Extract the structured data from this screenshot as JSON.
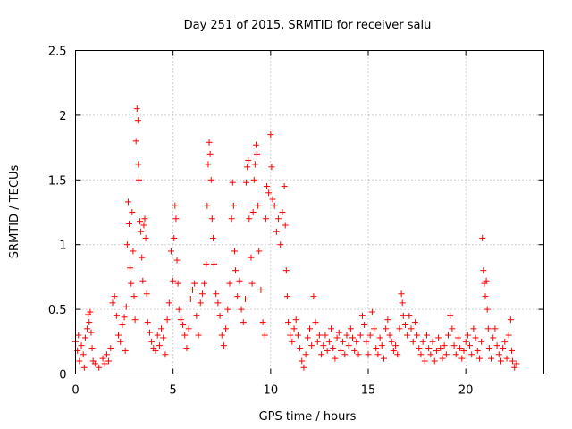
{
  "chart_data": {
    "type": "scatter",
    "title": "Day 251 of 2015, SRMTID for receiver salu",
    "xlabel": "GPS time / hours",
    "ylabel": "SRMTID / TECUs",
    "xlim": [
      0,
      24
    ],
    "ylim": [
      0,
      2.5
    ],
    "grid": true,
    "marker": "+",
    "marker_color": "#ff0000",
    "x_ticks": [
      0,
      5,
      10,
      15,
      20
    ],
    "x_tick_labels": [
      "0",
      "5",
      "10",
      "15",
      "20"
    ],
    "y_ticks": [
      0,
      0.5,
      1,
      1.5,
      2,
      2.5
    ],
    "y_tick_labels": [
      "0",
      "0.5",
      "1",
      "1.5",
      "2",
      "2.5"
    ],
    "series": [
      {
        "name": "salu",
        "points": [
          [
            0.0,
            0.25
          ],
          [
            0.1,
            0.18
          ],
          [
            0.15,
            0.3
          ],
          [
            0.2,
            0.1
          ],
          [
            0.3,
            0.22
          ],
          [
            0.4,
            0.15
          ],
          [
            0.45,
            0.05
          ],
          [
            0.5,
            0.28
          ],
          [
            0.6,
            0.35
          ],
          [
            0.65,
            0.46
          ],
          [
            0.7,
            0.4
          ],
          [
            0.75,
            0.48
          ],
          [
            0.8,
            0.32
          ],
          [
            0.85,
            0.2
          ],
          [
            0.9,
            0.1
          ],
          [
            1.0,
            0.08
          ],
          [
            1.2,
            0.05
          ],
          [
            1.4,
            0.12
          ],
          [
            1.5,
            0.08
          ],
          [
            1.6,
            0.15
          ],
          [
            1.7,
            0.1
          ],
          [
            1.8,
            0.2
          ],
          [
            1.9,
            0.55
          ],
          [
            2.0,
            0.6
          ],
          [
            2.1,
            0.45
          ],
          [
            2.2,
            0.3
          ],
          [
            2.3,
            0.25
          ],
          [
            2.4,
            0.38
          ],
          [
            2.5,
            0.44
          ],
          [
            2.55,
            0.18
          ],
          [
            2.6,
            0.52
          ],
          [
            2.65,
            1.0
          ],
          [
            2.7,
            1.33
          ],
          [
            2.75,
            1.16
          ],
          [
            2.8,
            0.82
          ],
          [
            2.85,
            0.7
          ],
          [
            2.9,
            1.25
          ],
          [
            2.95,
            0.95
          ],
          [
            3.0,
            0.6
          ],
          [
            3.05,
            0.42
          ],
          [
            3.1,
            1.8
          ],
          [
            3.15,
            2.05
          ],
          [
            3.2,
            1.96
          ],
          [
            3.22,
            1.62
          ],
          [
            3.25,
            1.5
          ],
          [
            3.3,
            1.18
          ],
          [
            3.35,
            1.1
          ],
          [
            3.4,
            0.9
          ],
          [
            3.45,
            0.72
          ],
          [
            3.5,
            1.15
          ],
          [
            3.55,
            1.2
          ],
          [
            3.6,
            1.05
          ],
          [
            3.65,
            0.62
          ],
          [
            3.7,
            0.4
          ],
          [
            3.8,
            0.32
          ],
          [
            3.9,
            0.25
          ],
          [
            4.0,
            0.2
          ],
          [
            4.1,
            0.18
          ],
          [
            4.2,
            0.3
          ],
          [
            4.3,
            0.22
          ],
          [
            4.4,
            0.35
          ],
          [
            4.5,
            0.28
          ],
          [
            4.6,
            0.15
          ],
          [
            4.7,
            0.42
          ],
          [
            4.8,
            0.55
          ],
          [
            4.9,
            0.95
          ],
          [
            5.0,
            0.72
          ],
          [
            5.05,
            1.05
          ],
          [
            5.1,
            1.3
          ],
          [
            5.15,
            1.2
          ],
          [
            5.2,
            0.88
          ],
          [
            5.25,
            0.7
          ],
          [
            5.3,
            0.5
          ],
          [
            5.4,
            0.42
          ],
          [
            5.5,
            0.38
          ],
          [
            5.6,
            0.3
          ],
          [
            5.7,
            0.2
          ],
          [
            5.8,
            0.35
          ],
          [
            5.9,
            0.58
          ],
          [
            6.0,
            0.65
          ],
          [
            6.1,
            0.7
          ],
          [
            6.2,
            0.45
          ],
          [
            6.3,
            0.3
          ],
          [
            6.4,
            0.55
          ],
          [
            6.5,
            0.62
          ],
          [
            6.6,
            0.7
          ],
          [
            6.7,
            0.85
          ],
          [
            6.75,
            1.3
          ],
          [
            6.8,
            1.62
          ],
          [
            6.85,
            1.79
          ],
          [
            6.9,
            1.7
          ],
          [
            6.95,
            1.5
          ],
          [
            7.0,
            1.2
          ],
          [
            7.05,
            1.05
          ],
          [
            7.1,
            0.85
          ],
          [
            7.2,
            0.62
          ],
          [
            7.3,
            0.55
          ],
          [
            7.4,
            0.45
          ],
          [
            7.5,
            0.3
          ],
          [
            7.6,
            0.22
          ],
          [
            7.7,
            0.35
          ],
          [
            7.8,
            0.5
          ],
          [
            7.9,
            0.7
          ],
          [
            8.0,
            1.2
          ],
          [
            8.05,
            1.48
          ],
          [
            8.1,
            1.3
          ],
          [
            8.15,
            0.95
          ],
          [
            8.2,
            0.8
          ],
          [
            8.3,
            0.6
          ],
          [
            8.4,
            0.72
          ],
          [
            8.5,
            0.5
          ],
          [
            8.6,
            0.4
          ],
          [
            8.7,
            0.58
          ],
          [
            8.75,
            1.48
          ],
          [
            8.8,
            1.6
          ],
          [
            8.85,
            1.65
          ],
          [
            8.9,
            1.2
          ],
          [
            9.0,
            0.9
          ],
          [
            9.05,
            0.7
          ],
          [
            9.1,
            1.25
          ],
          [
            9.15,
            1.5
          ],
          [
            9.2,
            1.62
          ],
          [
            9.25,
            1.77
          ],
          [
            9.3,
            1.7
          ],
          [
            9.35,
            1.3
          ],
          [
            9.4,
            0.95
          ],
          [
            9.5,
            0.65
          ],
          [
            9.6,
            0.4
          ],
          [
            9.7,
            0.3
          ],
          [
            9.75,
            1.2
          ],
          [
            9.8,
            1.45
          ],
          [
            9.9,
            1.4
          ],
          [
            10.0,
            1.85
          ],
          [
            10.05,
            1.6
          ],
          [
            10.1,
            1.35
          ],
          [
            10.2,
            1.3
          ],
          [
            10.3,
            1.1
          ],
          [
            10.4,
            1.2
          ],
          [
            10.5,
            1.0
          ],
          [
            10.6,
            1.25
          ],
          [
            10.7,
            1.45
          ],
          [
            10.75,
            1.15
          ],
          [
            10.8,
            0.8
          ],
          [
            10.85,
            0.6
          ],
          [
            10.9,
            0.4
          ],
          [
            11.0,
            0.3
          ],
          [
            11.1,
            0.25
          ],
          [
            11.2,
            0.35
          ],
          [
            11.3,
            0.42
          ],
          [
            11.4,
            0.3
          ],
          [
            11.5,
            0.2
          ],
          [
            11.6,
            0.1
          ],
          [
            11.7,
            0.05
          ],
          [
            11.8,
            0.15
          ],
          [
            11.9,
            0.28
          ],
          [
            12.0,
            0.35
          ],
          [
            12.1,
            0.22
          ],
          [
            12.2,
            0.6
          ],
          [
            12.3,
            0.4
          ],
          [
            12.4,
            0.25
          ],
          [
            12.5,
            0.3
          ],
          [
            12.6,
            0.15
          ],
          [
            12.7,
            0.22
          ],
          [
            12.8,
            0.3
          ],
          [
            12.9,
            0.18
          ],
          [
            13.0,
            0.25
          ],
          [
            13.1,
            0.35
          ],
          [
            13.2,
            0.2
          ],
          [
            13.3,
            0.12
          ],
          [
            13.4,
            0.28
          ],
          [
            13.5,
            0.32
          ],
          [
            13.6,
            0.18
          ],
          [
            13.7,
            0.25
          ],
          [
            13.8,
            0.15
          ],
          [
            13.9,
            0.3
          ],
          [
            14.0,
            0.22
          ],
          [
            14.1,
            0.35
          ],
          [
            14.2,
            0.28
          ],
          [
            14.3,
            0.18
          ],
          [
            14.4,
            0.25
          ],
          [
            14.5,
            0.15
          ],
          [
            14.6,
            0.3
          ],
          [
            14.7,
            0.45
          ],
          [
            14.8,
            0.38
          ],
          [
            14.9,
            0.25
          ],
          [
            15.0,
            0.15
          ],
          [
            15.1,
            0.3
          ],
          [
            15.2,
            0.48
          ],
          [
            15.3,
            0.35
          ],
          [
            15.4,
            0.2
          ],
          [
            15.5,
            0.15
          ],
          [
            15.6,
            0.28
          ],
          [
            15.7,
            0.22
          ],
          [
            15.8,
            0.12
          ],
          [
            15.9,
            0.35
          ],
          [
            16.0,
            0.42
          ],
          [
            16.1,
            0.3
          ],
          [
            16.2,
            0.25
          ],
          [
            16.3,
            0.18
          ],
          [
            16.4,
            0.22
          ],
          [
            16.5,
            0.15
          ],
          [
            16.6,
            0.35
          ],
          [
            16.7,
            0.62
          ],
          [
            16.75,
            0.55
          ],
          [
            16.8,
            0.45
          ],
          [
            16.9,
            0.38
          ],
          [
            17.0,
            0.3
          ],
          [
            17.1,
            0.45
          ],
          [
            17.2,
            0.35
          ],
          [
            17.3,
            0.25
          ],
          [
            17.4,
            0.4
          ],
          [
            17.5,
            0.3
          ],
          [
            17.6,
            0.2
          ],
          [
            17.7,
            0.15
          ],
          [
            17.8,
            0.25
          ],
          [
            17.9,
            0.1
          ],
          [
            18.0,
            0.3
          ],
          [
            18.1,
            0.2
          ],
          [
            18.2,
            0.15
          ],
          [
            18.3,
            0.25
          ],
          [
            18.4,
            0.1
          ],
          [
            18.5,
            0.18
          ],
          [
            18.6,
            0.28
          ],
          [
            18.7,
            0.2
          ],
          [
            18.8,
            0.12
          ],
          [
            18.9,
            0.22
          ],
          [
            19.0,
            0.15
          ],
          [
            19.1,
            0.3
          ],
          [
            19.2,
            0.45
          ],
          [
            19.3,
            0.35
          ],
          [
            19.4,
            0.22
          ],
          [
            19.5,
            0.15
          ],
          [
            19.6,
            0.28
          ],
          [
            19.7,
            0.2
          ],
          [
            19.8,
            0.12
          ],
          [
            19.9,
            0.18
          ],
          [
            20.0,
            0.25
          ],
          [
            20.1,
            0.3
          ],
          [
            20.2,
            0.22
          ],
          [
            20.3,
            0.15
          ],
          [
            20.4,
            0.35
          ],
          [
            20.5,
            0.28
          ],
          [
            20.6,
            0.18
          ],
          [
            20.7,
            0.12
          ],
          [
            20.8,
            0.25
          ],
          [
            20.85,
            1.05
          ],
          [
            20.9,
            0.8
          ],
          [
            20.95,
            0.7
          ],
          [
            21.0,
            0.6
          ],
          [
            21.05,
            0.72
          ],
          [
            21.1,
            0.5
          ],
          [
            21.15,
            0.35
          ],
          [
            21.2,
            0.2
          ],
          [
            21.3,
            0.12
          ],
          [
            21.4,
            0.28
          ],
          [
            21.5,
            0.35
          ],
          [
            21.6,
            0.22
          ],
          [
            21.7,
            0.15
          ],
          [
            21.8,
            0.1
          ],
          [
            21.9,
            0.2
          ],
          [
            22.0,
            0.25
          ],
          [
            22.1,
            0.12
          ],
          [
            22.2,
            0.3
          ],
          [
            22.3,
            0.42
          ],
          [
            22.35,
            0.18
          ],
          [
            22.4,
            0.1
          ],
          [
            22.5,
            0.05
          ],
          [
            22.6,
            0.08
          ]
        ]
      }
    ]
  }
}
